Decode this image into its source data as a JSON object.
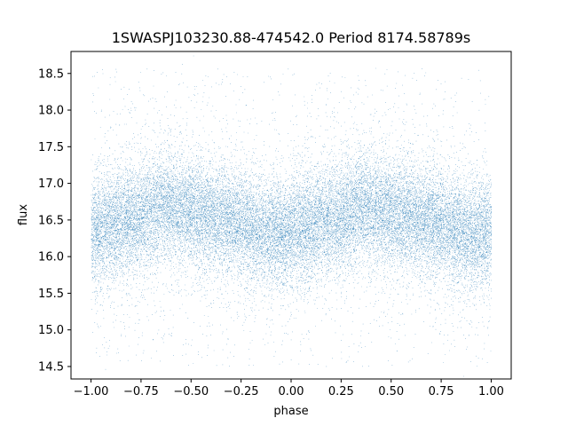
{
  "chart_data": {
    "type": "scatter",
    "title": "1SWASPJ103230.88-474542.0 Period 8174.58789s",
    "xlabel": "phase",
    "ylabel": "flux",
    "xlim": [
      -1.1,
      1.1
    ],
    "ylim": [
      14.33,
      18.8
    ],
    "xticks": [
      -1.0,
      -0.75,
      -0.5,
      -0.25,
      0.0,
      0.25,
      0.5,
      0.75,
      1.0
    ],
    "xtick_labels": [
      "−1.00",
      "−0.75",
      "−0.50",
      "−0.25",
      "0.00",
      "0.25",
      "0.50",
      "0.75",
      "1.00"
    ],
    "yticks": [
      14.5,
      15.0,
      15.5,
      16.0,
      16.5,
      17.0,
      17.5,
      18.0,
      18.5
    ],
    "ytick_labels": [
      "14.5",
      "15.0",
      "15.5",
      "16.0",
      "16.5",
      "17.0",
      "17.5",
      "18.0",
      "18.5"
    ],
    "grid": false,
    "marker_color": "#1f77b4",
    "point_count": 30000,
    "series": [
      {
        "x_range": [
          -1.0,
          1.0
        ],
        "y_center_profile": [
          {
            "x": -1.0,
            "y": 16.35
          },
          {
            "x": -0.75,
            "y": 16.55
          },
          {
            "x": -0.65,
            "y": 16.7
          },
          {
            "x": -0.5,
            "y": 16.6
          },
          {
            "x": -0.25,
            "y": 16.45
          },
          {
            "x": -0.1,
            "y": 16.3
          },
          {
            "x": 0.0,
            "y": 16.35
          },
          {
            "x": 0.25,
            "y": 16.55
          },
          {
            "x": 0.35,
            "y": 16.7
          },
          {
            "x": 0.5,
            "y": 16.6
          },
          {
            "x": 0.75,
            "y": 16.45
          },
          {
            "x": 0.9,
            "y": 16.3
          },
          {
            "x": 1.0,
            "y": 16.35
          }
        ],
        "core_scatter_sigma": 0.35,
        "outlier_range": [
          14.5,
          18.6
        ]
      }
    ]
  }
}
